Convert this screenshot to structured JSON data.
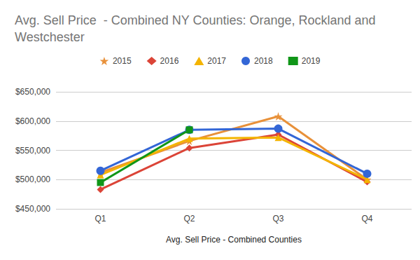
{
  "chart_data": {
    "type": "line",
    "title": "Avg. Sell Price  - Combined NY Counties: Orange, Rockland and Westchester",
    "x_label": "Avg. Sell Price - Combined Counties",
    "categories": [
      "Q1",
      "Q2",
      "Q3",
      "Q4"
    ],
    "series": [
      {
        "name": "2015",
        "color": "#e8913a",
        "marker": "star",
        "values": [
          512000,
          566000,
          608000,
          500000
        ]
      },
      {
        "name": "2016",
        "color": "#db4437",
        "marker": "diamond",
        "values": [
          483000,
          554000,
          577000,
          496000
        ]
      },
      {
        "name": "2017",
        "color": "#f4b400",
        "marker": "triangle",
        "values": [
          508000,
          570000,
          572000,
          500000
        ]
      },
      {
        "name": "2018",
        "color": "#3366d6",
        "marker": "circle",
        "values": [
          515000,
          585000,
          587000,
          510000
        ]
      },
      {
        "name": "2019",
        "color": "#109618",
        "marker": "square",
        "values": [
          495000,
          585000,
          null,
          null
        ]
      }
    ],
    "ylim": [
      450000,
      650000
    ],
    "yticks": [
      {
        "value": 450000,
        "label": "$450,000"
      },
      {
        "value": 500000,
        "label": "$500,000"
      },
      {
        "value": 550000,
        "label": "$550,000"
      },
      {
        "value": 600000,
        "label": "$600,000"
      },
      {
        "value": 650000,
        "label": "$650,000"
      }
    ],
    "grid": true,
    "legend": "top"
  }
}
